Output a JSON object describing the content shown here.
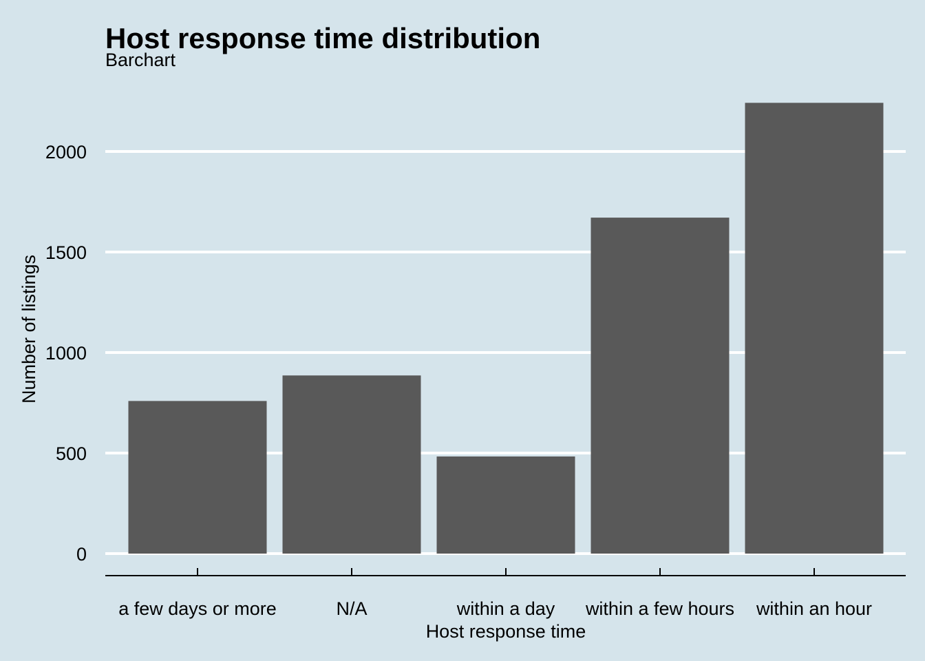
{
  "chart_data": {
    "type": "bar",
    "title": "Host response time distribution",
    "subtitle": "Barchart",
    "xlabel": "Host response time",
    "ylabel": "Number of listings",
    "categories": [
      "a few days or more",
      "N/A",
      "within a day",
      "within a few hours",
      "within an hour"
    ],
    "values": [
      759,
      886,
      483,
      1671,
      2242
    ],
    "ylim": [
      0,
      2300
    ],
    "yticks": [
      0,
      500,
      1000,
      1500,
      2000
    ],
    "grid": true,
    "legend": "none",
    "bar_color": "#595959",
    "background_color": "#d5e4eb"
  }
}
